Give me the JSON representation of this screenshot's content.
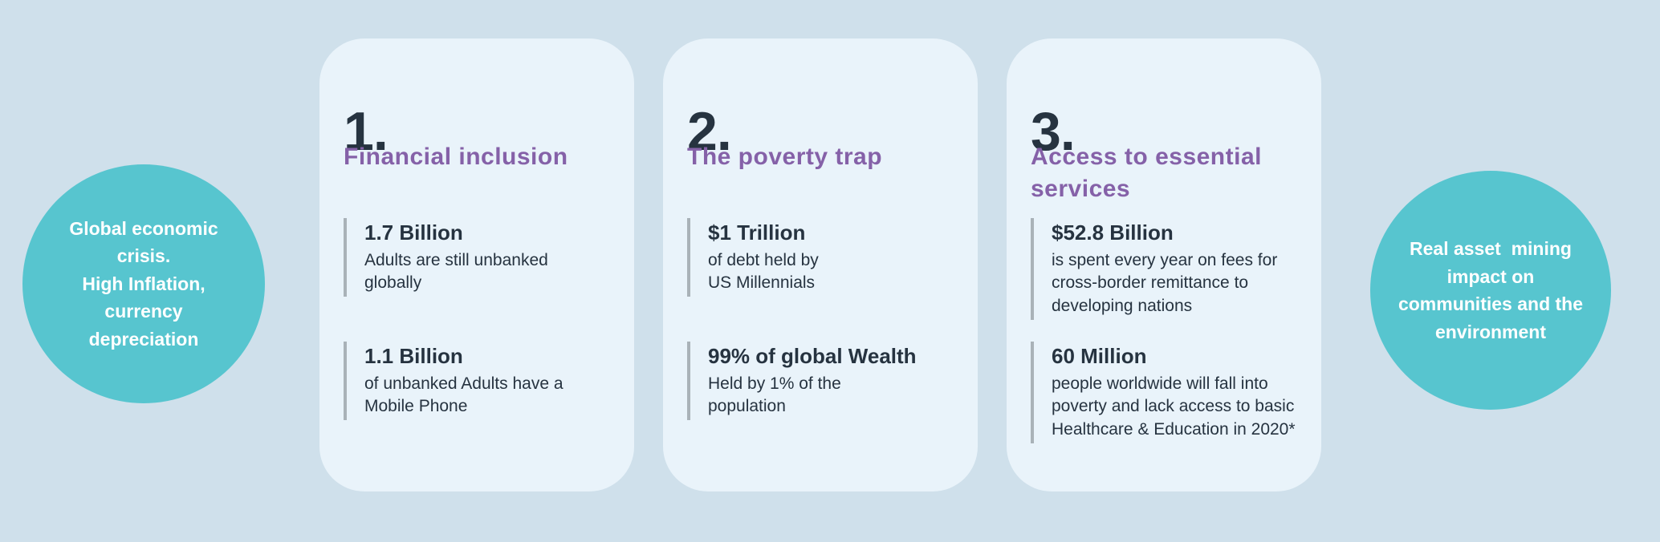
{
  "colors": {
    "background": "#cfe0eb",
    "card_background": "#e9f3fa",
    "circle_teal": "#57c5cf",
    "heading_purple": "#8561a8",
    "text_dark": "#263340",
    "stat_bar_gray": "#a9b2b8",
    "circle_text_white": "#ffffff"
  },
  "left_circle": {
    "text": "Global economic\ncrisis.\nHigh Inflation,\ncurrency\ndepreciation"
  },
  "right_circle": {
    "text": "Real asset  mining\nimpact on\ncommunities and the\nenvironment"
  },
  "cards": [
    {
      "number": "1.",
      "title": "Financial inclusion",
      "stats": [
        {
          "value": "1.7 Billion",
          "description": "Adults are still unbanked\nglobally"
        },
        {
          "value": "1.1 Billion",
          "description": "of unbanked Adults have a\nMobile Phone"
        }
      ]
    },
    {
      "number": "2.",
      "title": "The poverty trap",
      "stats": [
        {
          "value": "$1 Trillion",
          "description": "of debt held by\nUS Millennials"
        },
        {
          "value": "99% of global Wealth",
          "description": "Held by 1% of the\npopulation"
        }
      ]
    },
    {
      "number": "3.",
      "title": "Access to essential\nservices",
      "stats": [
        {
          "value": "$52.8 Billion",
          "description": "is spent every year on fees for\ncross-border remittance to\ndeveloping nations"
        },
        {
          "value": "60 Million",
          "description": "people worldwide will fall into\npoverty and lack access to basic\nHealthcare & Education in 2020*"
        }
      ]
    }
  ]
}
